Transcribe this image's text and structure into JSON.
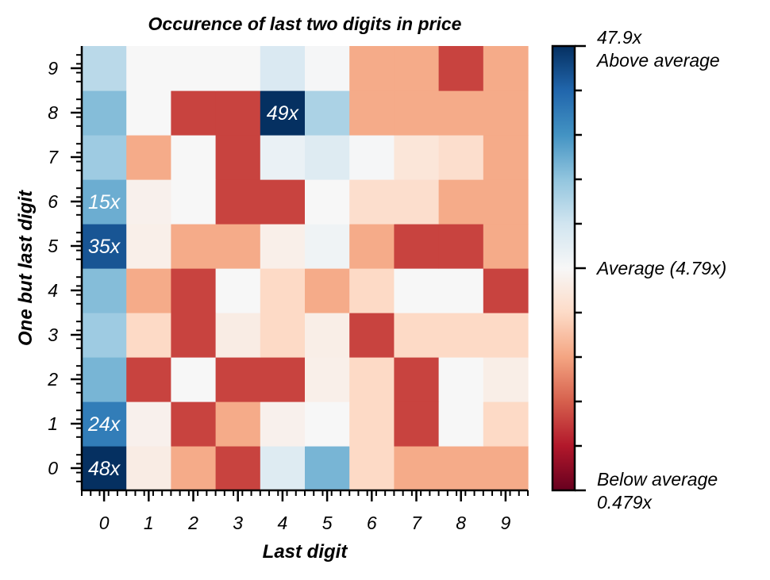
{
  "chart_data": {
    "type": "heatmap",
    "title": "Occurence of last two digits in price",
    "xlabel": "Last digit",
    "ylabel": "One but last digit",
    "x_categories": [
      "0",
      "1",
      "2",
      "3",
      "4",
      "5",
      "6",
      "7",
      "8",
      "9"
    ],
    "y_categories": [
      "0",
      "1",
      "2",
      "3",
      "4",
      "5",
      "6",
      "7",
      "8",
      "9"
    ],
    "scale": "log",
    "cmap": "RdBu",
    "vmin": 0.479,
    "vmax": 47.9,
    "values": [
      [
        48,
        4.0,
        2.0,
        1.0,
        6.5,
        14,
        3.0,
        2.0,
        2.0,
        2.0
      ],
      [
        24,
        4.3,
        1.0,
        2.0,
        4.3,
        4.8,
        3.0,
        1.0,
        4.79,
        3.0
      ],
      [
        14,
        1.0,
        4.79,
        1.0,
        1.0,
        4.2,
        3.0,
        1.0,
        4.79,
        4.1
      ],
      [
        11,
        3.0,
        1.0,
        4.0,
        3.0,
        4.1,
        1.0,
        3.0,
        3.0,
        3.0
      ],
      [
        13,
        2.0,
        1.0,
        4.8,
        3.0,
        2.0,
        3.0,
        4.79,
        4.79,
        1.0
      ],
      [
        35,
        4.2,
        2.0,
        2.0,
        4.2,
        5.3,
        2.0,
        1.0,
        1.0,
        2.0
      ],
      [
        15,
        4.3,
        4.79,
        1.0,
        1.0,
        4.8,
        3.2,
        3.2,
        2.0,
        2.0
      ],
      [
        11,
        2.0,
        4.79,
        1.0,
        5.6,
        6.5,
        4.9,
        3.6,
        3.2,
        2.0
      ],
      [
        13,
        4.79,
        1.0,
        1.0,
        49,
        10,
        2.0,
        2.0,
        2.0,
        2.0
      ],
      [
        9,
        4.79,
        4.79,
        4.79,
        6.8,
        4.9,
        2.0,
        2.0,
        1.0,
        2.0
      ]
    ],
    "annotations": [
      {
        "row": 0,
        "col": 0,
        "text": "48x"
      },
      {
        "row": 1,
        "col": 0,
        "text": "24x"
      },
      {
        "row": 5,
        "col": 0,
        "text": "35x"
      },
      {
        "row": 6,
        "col": 0,
        "text": "15x"
      },
      {
        "row": 8,
        "col": 4,
        "text": "49x"
      }
    ],
    "colorbar": {
      "top_value": "47.9x",
      "top_label": "Above average",
      "mid_label": "Average (4.79x)",
      "bottom_label": "Below average",
      "bottom_value": "0.479x"
    }
  }
}
